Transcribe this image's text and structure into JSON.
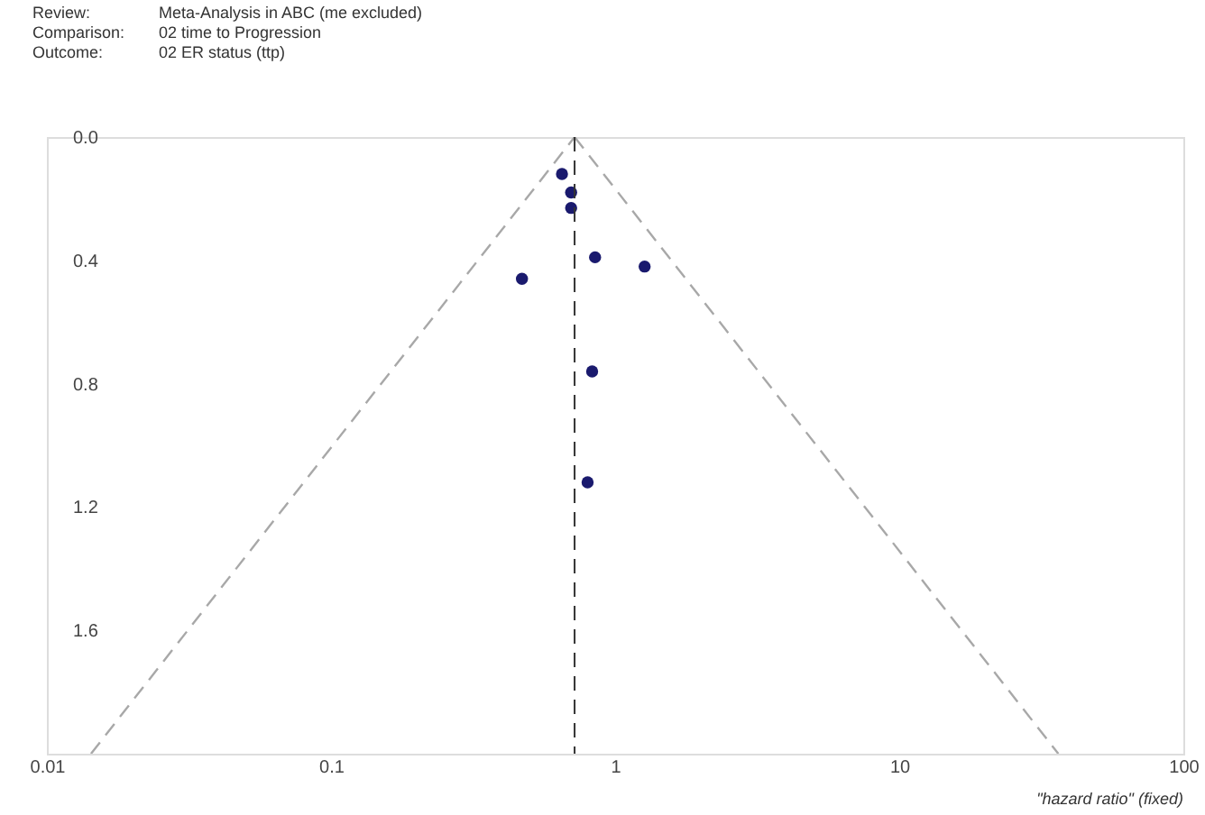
{
  "chart_data": {
    "type": "scatter",
    "annotations": [
      "Review:",
      "Meta-Analysis in ABC (me excluded)",
      "Comparison:",
      "02 time to Progression",
      "Outcome:",
      "02 ER status (ttp)"
    ],
    "xlabel": "\"hazard ratio\" (fixed)",
    "log": "x",
    "xlim": [
      0.01,
      100
    ],
    "xticks": [
      0.01,
      0.1,
      1,
      10,
      100
    ],
    "ylim": [
      2.0,
      0.0
    ],
    "yticks": [
      {
        "value": 0,
        "label": "0.0"
      },
      0.4,
      0.8,
      1.2,
      1.6
    ],
    "grid": false,
    "series": [
      {
        "marker": "circle",
        "color": "#1a1a6e",
        "x": [
          0.65,
          0.7,
          0.7,
          0.85,
          1.27,
          0.47,
          0.83,
          0.8
        ],
        "values": [
          0.12,
          0.18,
          0.23,
          0.39,
          0.42,
          0.46,
          0.76,
          1.12
        ]
      },
      {
        "type": "line",
        "marker": "none",
        "color": "#a8a8a8",
        "line_style": "dashed",
        "x": [
          0.72,
          0.0143
        ],
        "values": [
          0,
          2.0
        ]
      },
      {
        "type": "line",
        "marker": "none",
        "color": "#a8a8a8",
        "line_style": "dashed",
        "x": [
          0.72,
          36.3
        ],
        "values": [
          0,
          2.0
        ]
      }
    ],
    "ref_lines": [
      {
        "axis": "x",
        "value": 0.72,
        "color": "#333333",
        "line_style": "dashed"
      }
    ]
  }
}
